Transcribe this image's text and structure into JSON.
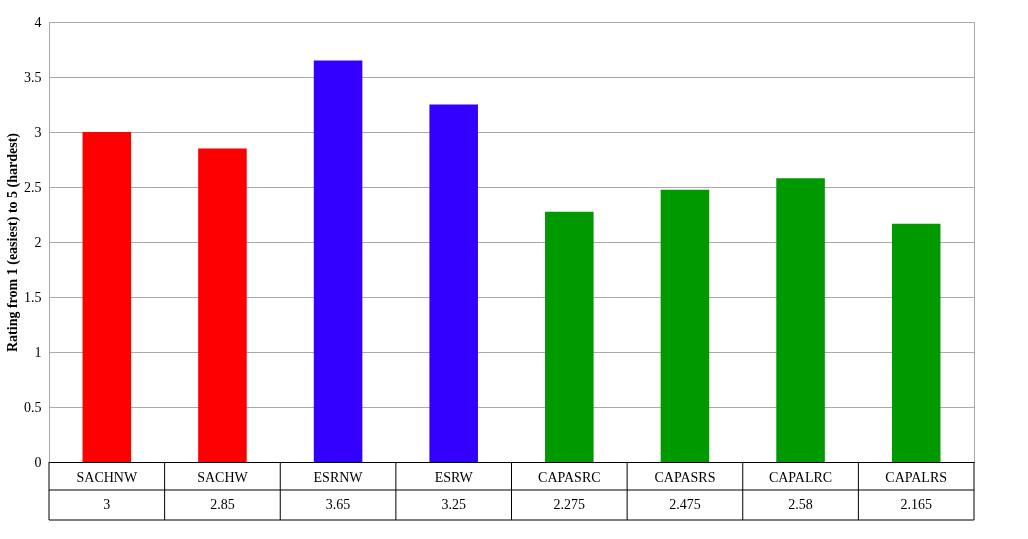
{
  "chart_data": {
    "type": "bar",
    "ylabel": "Rating from 1 (easiest) to 5 (hardest)",
    "categories": [
      "SACHNW",
      "SACHW",
      "ESRNW",
      "ESRW",
      "CAPASRC",
      "CAPASRS",
      "CAPALRC",
      "CAPALRS"
    ],
    "values": [
      3,
      2.85,
      3.65,
      3.25,
      2.275,
      2.475,
      2.58,
      2.165
    ],
    "colors": [
      "#ff0000",
      "#ff0000",
      "#3300ff",
      "#3300ff",
      "#009900",
      "#009900",
      "#009900",
      "#009900"
    ],
    "ylim": [
      0,
      4
    ],
    "yticks": [
      0,
      0.5,
      1,
      1.5,
      2,
      2.5,
      3,
      3.5,
      4
    ],
    "grid": "y",
    "data_labels": true
  }
}
